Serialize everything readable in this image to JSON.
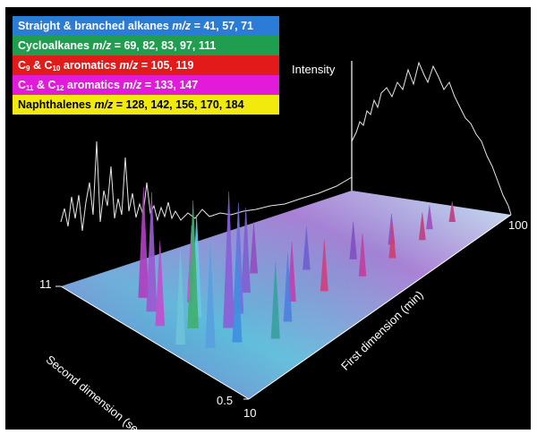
{
  "legend": [
    {
      "text": "Straight & branched alkanes ",
      "mz": "m/z",
      "values": " = 41, 57, 71",
      "color": "#2b7cd6",
      "text_color": "#ffffff"
    },
    {
      "text": "Cycloalkanes ",
      "mz": "m/z",
      "values": " = 69, 82, 83, 97, 111",
      "color": "#1f9e4f",
      "text_color": "#ffffff"
    },
    {
      "pre1": "C",
      "sub1": "9",
      "mid": " & C",
      "sub2": "10",
      "text": " aromatics ",
      "mz": "m/z",
      "values": " = 105, 119",
      "color": "#e21a1a",
      "text_color": "#ffffff"
    },
    {
      "pre1": "C",
      "sub1": "11",
      "mid": " & C",
      "sub2": "12",
      "text": " aromatics ",
      "mz": "m/z",
      "values": " = 133, 147",
      "color": "#e21ad9",
      "text_color": "#ffffff"
    },
    {
      "text": "Naphthalenes ",
      "mz": "m/z",
      "values": " = 128, 142, 156, 170, 184",
      "color": "#f2ea0c",
      "text_color": "#000000"
    }
  ],
  "axes": {
    "intensity_label": "Intensity",
    "second_dimension_label": "Second dimension (sec)",
    "first_dimension_label": "First dimension (min)",
    "y_tick_top": "11",
    "y_tick_bottom": "0.5",
    "x_tick_start": "10",
    "x_tick_end": "100"
  },
  "chart_data": {
    "type": "surface-3d",
    "title": "",
    "xlabel": "First dimension (min)",
    "ylabel": "Second dimension (sec)",
    "zlabel": "Intensity",
    "xlim": [
      10,
      100
    ],
    "ylim": [
      0.5,
      11
    ],
    "series": [
      {
        "name": "Straight & branched alkanes m/z = 41, 57, 71",
        "color": "#2b7cd6"
      },
      {
        "name": "Cycloalkanes m/z = 69, 82, 83, 97, 111",
        "color": "#1f9e4f"
      },
      {
        "name": "C9 & C10 aromatics m/z = 105, 119",
        "color": "#e21a1a"
      },
      {
        "name": "C11 & C12 aromatics m/z = 133, 147",
        "color": "#e21ad9"
      },
      {
        "name": "Naphthalenes m/z = 128, 142, 156, 170, 184",
        "color": "#f2ea0c"
      }
    ],
    "peaks": [
      {
        "first_dim_min": 14,
        "second_dim_sec": 5.0,
        "intensity": 0.55,
        "color": "#6fc3d9"
      },
      {
        "first_dim_min": 16,
        "second_dim_sec": 6.5,
        "intensity": 0.5,
        "color": "#c050d0"
      },
      {
        "first_dim_min": 18,
        "second_dim_sec": 4.0,
        "intensity": 0.6,
        "color": "#5aa0e0"
      },
      {
        "first_dim_min": 19,
        "second_dim_sec": 7.5,
        "intensity": 0.7,
        "color": "#9a5ad0"
      },
      {
        "first_dim_min": 21,
        "second_dim_sec": 5.5,
        "intensity": 0.75,
        "color": "#40b070"
      },
      {
        "first_dim_min": 22,
        "second_dim_sec": 8.5,
        "intensity": 0.65,
        "color": "#b040c0"
      },
      {
        "first_dim_min": 24,
        "second_dim_sec": 3.5,
        "intensity": 0.55,
        "color": "#4090e0"
      },
      {
        "first_dim_min": 25,
        "second_dim_sec": 6.0,
        "intensity": 0.6,
        "color": "#6ac8e8"
      },
      {
        "first_dim_min": 27,
        "second_dim_sec": 4.5,
        "intensity": 0.8,
        "color": "#8a60d8"
      },
      {
        "first_dim_min": 29,
        "second_dim_sec": 7.0,
        "intensity": 0.45,
        "color": "#d04cd0"
      },
      {
        "first_dim_min": 31,
        "second_dim_sec": 2.5,
        "intensity": 0.45,
        "color": "#3aa0a0"
      },
      {
        "first_dim_min": 33,
        "second_dim_sec": 5.0,
        "intensity": 0.65,
        "color": "#7070e0"
      },
      {
        "first_dim_min": 35,
        "second_dim_sec": 8.0,
        "intensity": 0.4,
        "color": "#a050c8"
      },
      {
        "first_dim_min": 38,
        "second_dim_sec": 3.0,
        "intensity": 0.4,
        "color": "#5080e0"
      },
      {
        "first_dim_min": 41,
        "second_dim_sec": 6.0,
        "intensity": 0.5,
        "color": "#8060d0"
      },
      {
        "first_dim_min": 45,
        "second_dim_sec": 4.0,
        "intensity": 0.35,
        "color": "#c040b0"
      },
      {
        "first_dim_min": 49,
        "second_dim_sec": 7.0,
        "intensity": 0.3,
        "color": "#9050c0"
      },
      {
        "first_dim_min": 53,
        "second_dim_sec": 3.5,
        "intensity": 0.3,
        "color": "#d04080"
      },
      {
        "first_dim_min": 58,
        "second_dim_sec": 5.5,
        "intensity": 0.25,
        "color": "#7060d0"
      },
      {
        "first_dim_min": 63,
        "second_dim_sec": 3.0,
        "intensity": 0.25,
        "color": "#c040a0"
      },
      {
        "first_dim_min": 68,
        "second_dim_sec": 4.5,
        "intensity": 0.22,
        "color": "#8050c0"
      },
      {
        "first_dim_min": 73,
        "second_dim_sec": 3.0,
        "intensity": 0.2,
        "color": "#d04070"
      },
      {
        "first_dim_min": 78,
        "second_dim_sec": 4.0,
        "intensity": 0.18,
        "color": "#9050c0"
      },
      {
        "first_dim_min": 83,
        "second_dim_sec": 3.0,
        "intensity": 0.16,
        "color": "#c04080"
      },
      {
        "first_dim_min": 88,
        "second_dim_sec": 3.5,
        "intensity": 0.14,
        "color": "#a050c0"
      },
      {
        "first_dim_min": 93,
        "second_dim_sec": 3.0,
        "intensity": 0.12,
        "color": "#c04080"
      }
    ]
  }
}
